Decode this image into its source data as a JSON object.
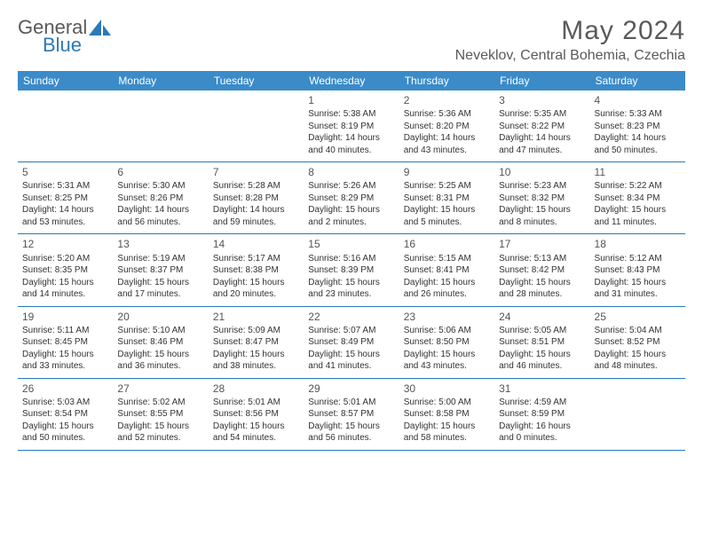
{
  "brand": {
    "word1": "General",
    "word2": "Blue"
  },
  "title": "May 2024",
  "location": "Neveklov, Central Bohemia, Czechia",
  "colors": {
    "header_bg": "#3b8bc9",
    "accent": "#2a7ab8",
    "text": "#5a5a5a"
  },
  "dayNames": [
    "Sunday",
    "Monday",
    "Tuesday",
    "Wednesday",
    "Thursday",
    "Friday",
    "Saturday"
  ],
  "weeks": [
    [
      null,
      null,
      null,
      {
        "d": "1",
        "sr": "Sunrise: 5:38 AM",
        "ss": "Sunset: 8:19 PM",
        "dl1": "Daylight: 14 hours",
        "dl2": "and 40 minutes."
      },
      {
        "d": "2",
        "sr": "Sunrise: 5:36 AM",
        "ss": "Sunset: 8:20 PM",
        "dl1": "Daylight: 14 hours",
        "dl2": "and 43 minutes."
      },
      {
        "d": "3",
        "sr": "Sunrise: 5:35 AM",
        "ss": "Sunset: 8:22 PM",
        "dl1": "Daylight: 14 hours",
        "dl2": "and 47 minutes."
      },
      {
        "d": "4",
        "sr": "Sunrise: 5:33 AM",
        "ss": "Sunset: 8:23 PM",
        "dl1": "Daylight: 14 hours",
        "dl2": "and 50 minutes."
      }
    ],
    [
      {
        "d": "5",
        "sr": "Sunrise: 5:31 AM",
        "ss": "Sunset: 8:25 PM",
        "dl1": "Daylight: 14 hours",
        "dl2": "and 53 minutes."
      },
      {
        "d": "6",
        "sr": "Sunrise: 5:30 AM",
        "ss": "Sunset: 8:26 PM",
        "dl1": "Daylight: 14 hours",
        "dl2": "and 56 minutes."
      },
      {
        "d": "7",
        "sr": "Sunrise: 5:28 AM",
        "ss": "Sunset: 8:28 PM",
        "dl1": "Daylight: 14 hours",
        "dl2": "and 59 minutes."
      },
      {
        "d": "8",
        "sr": "Sunrise: 5:26 AM",
        "ss": "Sunset: 8:29 PM",
        "dl1": "Daylight: 15 hours",
        "dl2": "and 2 minutes."
      },
      {
        "d": "9",
        "sr": "Sunrise: 5:25 AM",
        "ss": "Sunset: 8:31 PM",
        "dl1": "Daylight: 15 hours",
        "dl2": "and 5 minutes."
      },
      {
        "d": "10",
        "sr": "Sunrise: 5:23 AM",
        "ss": "Sunset: 8:32 PM",
        "dl1": "Daylight: 15 hours",
        "dl2": "and 8 minutes."
      },
      {
        "d": "11",
        "sr": "Sunrise: 5:22 AM",
        "ss": "Sunset: 8:34 PM",
        "dl1": "Daylight: 15 hours",
        "dl2": "and 11 minutes."
      }
    ],
    [
      {
        "d": "12",
        "sr": "Sunrise: 5:20 AM",
        "ss": "Sunset: 8:35 PM",
        "dl1": "Daylight: 15 hours",
        "dl2": "and 14 minutes."
      },
      {
        "d": "13",
        "sr": "Sunrise: 5:19 AM",
        "ss": "Sunset: 8:37 PM",
        "dl1": "Daylight: 15 hours",
        "dl2": "and 17 minutes."
      },
      {
        "d": "14",
        "sr": "Sunrise: 5:17 AM",
        "ss": "Sunset: 8:38 PM",
        "dl1": "Daylight: 15 hours",
        "dl2": "and 20 minutes."
      },
      {
        "d": "15",
        "sr": "Sunrise: 5:16 AM",
        "ss": "Sunset: 8:39 PM",
        "dl1": "Daylight: 15 hours",
        "dl2": "and 23 minutes."
      },
      {
        "d": "16",
        "sr": "Sunrise: 5:15 AM",
        "ss": "Sunset: 8:41 PM",
        "dl1": "Daylight: 15 hours",
        "dl2": "and 26 minutes."
      },
      {
        "d": "17",
        "sr": "Sunrise: 5:13 AM",
        "ss": "Sunset: 8:42 PM",
        "dl1": "Daylight: 15 hours",
        "dl2": "and 28 minutes."
      },
      {
        "d": "18",
        "sr": "Sunrise: 5:12 AM",
        "ss": "Sunset: 8:43 PM",
        "dl1": "Daylight: 15 hours",
        "dl2": "and 31 minutes."
      }
    ],
    [
      {
        "d": "19",
        "sr": "Sunrise: 5:11 AM",
        "ss": "Sunset: 8:45 PM",
        "dl1": "Daylight: 15 hours",
        "dl2": "and 33 minutes."
      },
      {
        "d": "20",
        "sr": "Sunrise: 5:10 AM",
        "ss": "Sunset: 8:46 PM",
        "dl1": "Daylight: 15 hours",
        "dl2": "and 36 minutes."
      },
      {
        "d": "21",
        "sr": "Sunrise: 5:09 AM",
        "ss": "Sunset: 8:47 PM",
        "dl1": "Daylight: 15 hours",
        "dl2": "and 38 minutes."
      },
      {
        "d": "22",
        "sr": "Sunrise: 5:07 AM",
        "ss": "Sunset: 8:49 PM",
        "dl1": "Daylight: 15 hours",
        "dl2": "and 41 minutes."
      },
      {
        "d": "23",
        "sr": "Sunrise: 5:06 AM",
        "ss": "Sunset: 8:50 PM",
        "dl1": "Daylight: 15 hours",
        "dl2": "and 43 minutes."
      },
      {
        "d": "24",
        "sr": "Sunrise: 5:05 AM",
        "ss": "Sunset: 8:51 PM",
        "dl1": "Daylight: 15 hours",
        "dl2": "and 46 minutes."
      },
      {
        "d": "25",
        "sr": "Sunrise: 5:04 AM",
        "ss": "Sunset: 8:52 PM",
        "dl1": "Daylight: 15 hours",
        "dl2": "and 48 minutes."
      }
    ],
    [
      {
        "d": "26",
        "sr": "Sunrise: 5:03 AM",
        "ss": "Sunset: 8:54 PM",
        "dl1": "Daylight: 15 hours",
        "dl2": "and 50 minutes."
      },
      {
        "d": "27",
        "sr": "Sunrise: 5:02 AM",
        "ss": "Sunset: 8:55 PM",
        "dl1": "Daylight: 15 hours",
        "dl2": "and 52 minutes."
      },
      {
        "d": "28",
        "sr": "Sunrise: 5:01 AM",
        "ss": "Sunset: 8:56 PM",
        "dl1": "Daylight: 15 hours",
        "dl2": "and 54 minutes."
      },
      {
        "d": "29",
        "sr": "Sunrise: 5:01 AM",
        "ss": "Sunset: 8:57 PM",
        "dl1": "Daylight: 15 hours",
        "dl2": "and 56 minutes."
      },
      {
        "d": "30",
        "sr": "Sunrise: 5:00 AM",
        "ss": "Sunset: 8:58 PM",
        "dl1": "Daylight: 15 hours",
        "dl2": "and 58 minutes."
      },
      {
        "d": "31",
        "sr": "Sunrise: 4:59 AM",
        "ss": "Sunset: 8:59 PM",
        "dl1": "Daylight: 16 hours",
        "dl2": "and 0 minutes."
      },
      null
    ]
  ]
}
